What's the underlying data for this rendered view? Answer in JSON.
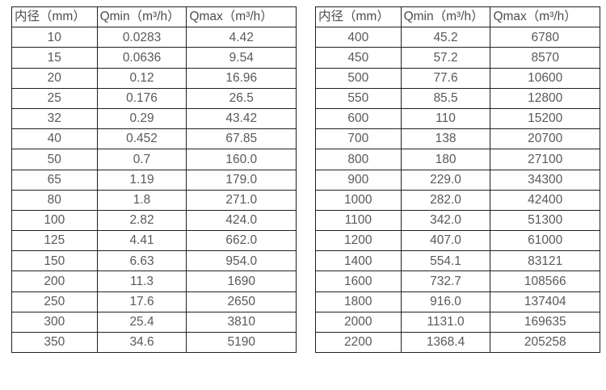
{
  "tables": [
    {
      "name": "small-diameter-flow-table",
      "header": [
        "内径（mm）",
        "Qmin（m³/h）",
        "Qmax（m³/h）"
      ],
      "rows": [
        [
          "10",
          "0.0283",
          "4.42"
        ],
        [
          "15",
          "0.0636",
          "9.54"
        ],
        [
          "20",
          "0.12",
          "16.96"
        ],
        [
          "25",
          "0.176",
          "26.5"
        ],
        [
          "32",
          "0.29",
          "43.42"
        ],
        [
          "40",
          "0.452",
          "67.85"
        ],
        [
          "50",
          "0.7",
          "160.0"
        ],
        [
          "65",
          "1.19",
          "179.0"
        ],
        [
          "80",
          "1.8",
          "271.0"
        ],
        [
          "100",
          "2.82",
          "424.0"
        ],
        [
          "125",
          "4.41",
          "662.0"
        ],
        [
          "150",
          "6.63",
          "954.0"
        ],
        [
          "200",
          "11.3",
          "1690"
        ],
        [
          "250",
          "17.6",
          "2650"
        ],
        [
          "300",
          "25.4",
          "3810"
        ],
        [
          "350",
          "34.6",
          "5190"
        ]
      ]
    },
    {
      "name": "large-diameter-flow-table",
      "header": [
        "内径（mm）",
        "Qmin（m³/h）",
        "Qmax（m³/h）"
      ],
      "rows": [
        [
          "400",
          "45.2",
          "6780"
        ],
        [
          "450",
          "57.2",
          "8570"
        ],
        [
          "500",
          "77.6",
          "10600"
        ],
        [
          "550",
          "85.5",
          "12800"
        ],
        [
          "600",
          "110",
          "15200"
        ],
        [
          "700",
          "138",
          "20700"
        ],
        [
          "800",
          "180",
          "27100"
        ],
        [
          "900",
          "229.0",
          "34300"
        ],
        [
          "1000",
          "282.0",
          "42400"
        ],
        [
          "1100",
          "342.0",
          "51300"
        ],
        [
          "1200",
          "407.0",
          "61000"
        ],
        [
          "1400",
          "554.1",
          "83121"
        ],
        [
          "1600",
          "732.7",
          "108566"
        ],
        [
          "1800",
          "916.0",
          "137404"
        ],
        [
          "2000",
          "1131.0",
          "169635"
        ],
        [
          "2200",
          "1368.4",
          "205258"
        ]
      ]
    }
  ],
  "colors": {
    "border": "#1f1f1f",
    "text": "#595959",
    "header_text": "#4d4d4d",
    "background": "#ffffff"
  }
}
